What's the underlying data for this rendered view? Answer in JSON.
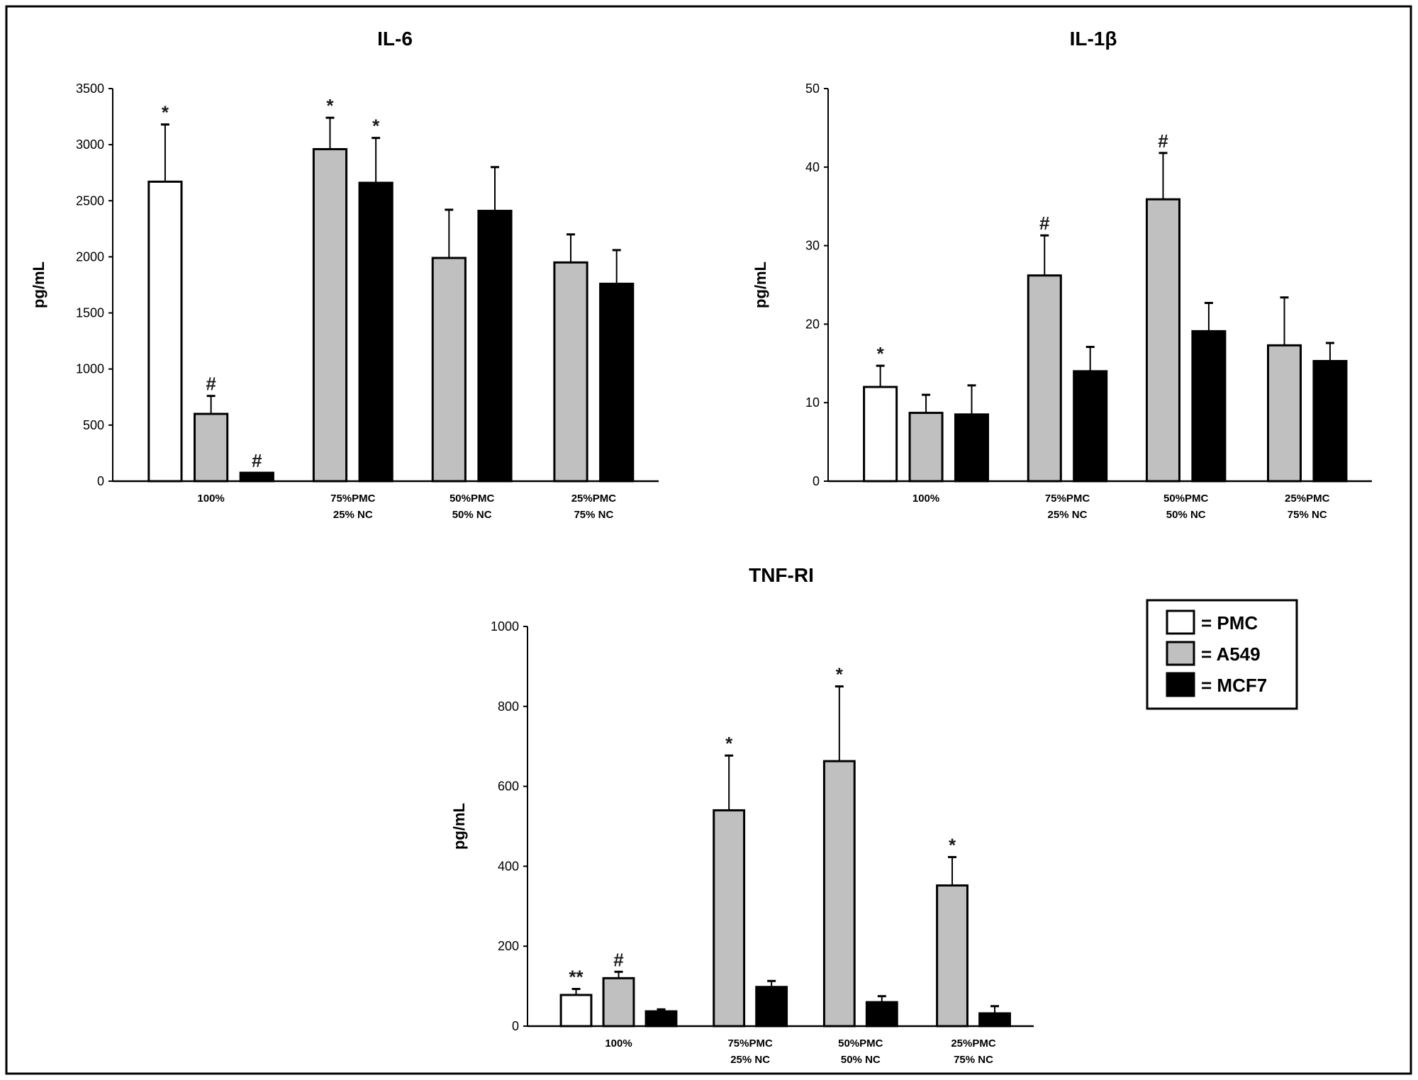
{
  "colors": {
    "PMC": "#ffffff",
    "A549": "#c0c0c0",
    "MCF7": "#000000",
    "star": "#1a1a1a"
  },
  "legend": {
    "placement": "right-middle",
    "entries": [
      {
        "label": "= PMC",
        "series": "PMC"
      },
      {
        "label": "= A549",
        "series": "A549"
      },
      {
        "label": "= MCF7",
        "series": "MCF7"
      }
    ]
  },
  "chart_data": [
    {
      "type": "bar",
      "title": "IL-6",
      "ylabel": "pg/mL",
      "ylim": [
        0,
        3500
      ],
      "yticks": [
        "0",
        "500",
        "1000",
        "1500",
        "2000",
        "2500",
        "3000",
        "3500"
      ],
      "categories": [
        [
          "100%"
        ],
        [
          "75%PMC",
          "25% NC"
        ],
        [
          "50%PMC",
          "50% NC"
        ],
        [
          "25%PMC",
          "75% NC"
        ]
      ],
      "series": [
        {
          "name": "PMC",
          "values": [
            2670,
            null,
            null,
            null
          ],
          "error_upper": [
            3180,
            null,
            null,
            null
          ],
          "annotations": [
            "*",
            null,
            null,
            null
          ]
        },
        {
          "name": "A549",
          "values": [
            600,
            2960,
            1990,
            1950
          ],
          "error_upper": [
            760,
            3240,
            2420,
            2200
          ],
          "annotations": [
            "#",
            "*",
            null,
            null
          ]
        },
        {
          "name": "MCF7",
          "values": [
            75,
            2660,
            2410,
            1760
          ],
          "error_upper": [
            null,
            3060,
            2800,
            2060
          ],
          "annotations": [
            "#",
            "*",
            null,
            null
          ]
        }
      ]
    },
    {
      "type": "bar",
      "title": "IL-1β",
      "ylabel": "pg/mL",
      "ylim": [
        0,
        50
      ],
      "yticks": [
        "0",
        "10",
        "20",
        "30",
        "40",
        "50"
      ],
      "categories": [
        [
          "100%"
        ],
        [
          "75%PMC",
          "25% NC"
        ],
        [
          "50%PMC",
          "50% NC"
        ],
        [
          "25%PMC",
          "75% NC"
        ]
      ],
      "series": [
        {
          "name": "PMC",
          "values": [
            12,
            null,
            null,
            null
          ],
          "error_upper": [
            14.7,
            null,
            null,
            null
          ],
          "annotations": [
            "*",
            null,
            null,
            null
          ]
        },
        {
          "name": "A549",
          "values": [
            8.7,
            26.2,
            35.9,
            17.3
          ],
          "error_upper": [
            11,
            31.3,
            41.8,
            23.4
          ],
          "annotations": [
            null,
            "#",
            "#",
            null
          ]
        },
        {
          "name": "MCF7",
          "values": [
            8.5,
            14,
            19.1,
            15.3
          ],
          "error_upper": [
            12.2,
            17.1,
            22.7,
            17.6
          ],
          "annotations": [
            null,
            null,
            null,
            null
          ]
        }
      ]
    },
    {
      "type": "bar",
      "title": "TNF-RI",
      "ylabel": "pg/mL",
      "ylim": [
        0,
        1000
      ],
      "yticks": [
        "0",
        "200",
        "400",
        "600",
        "800",
        "1000"
      ],
      "categories": [
        [
          "100%"
        ],
        [
          "75%PMC",
          "25% NC"
        ],
        [
          "50%PMC",
          "50% NC"
        ],
        [
          "25%PMC",
          "75% NC"
        ]
      ],
      "series": [
        {
          "name": "PMC",
          "values": [
            78,
            null,
            null,
            null
          ],
          "error_upper": [
            93,
            null,
            null,
            null
          ],
          "annotations": [
            "**",
            null,
            null,
            null
          ]
        },
        {
          "name": "A549",
          "values": [
            120,
            540,
            663,
            352
          ],
          "error_upper": [
            136,
            677,
            850,
            423
          ],
          "annotations": [
            "#",
            "*",
            "*",
            "*"
          ]
        },
        {
          "name": "MCF7",
          "values": [
            37,
            98,
            60,
            32
          ],
          "error_upper": [
            42,
            113,
            75,
            50
          ],
          "annotations": [
            null,
            null,
            null,
            null
          ]
        }
      ]
    }
  ]
}
